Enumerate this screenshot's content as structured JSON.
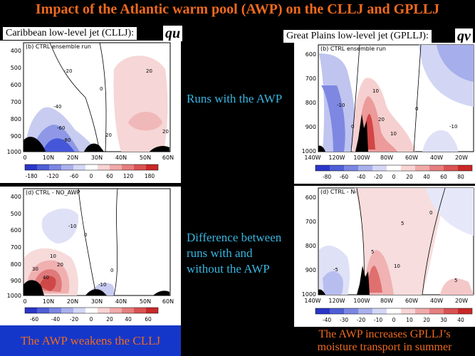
{
  "title": "Impact of the Atlantic warm pool (AWP) on the CLLJ and GPLLJ",
  "left_header": "Caribbean low-level jet (CLLJ):",
  "left_symbol": "qu",
  "right_header": "Great Plains low-level jet (GPLLJ):",
  "right_symbol": "qv",
  "middle_text_top": "Runs with the AWP",
  "middle_text_bottom": [
    "Difference between",
    "runs with and",
    "without the AWP"
  ],
  "bottom_left_caption": "The AWP weakens the CLLJ",
  "bottom_right_caption": [
    "The AWP increases GPLLJ’s",
    "moisture transport in summer"
  ],
  "colors": {
    "title": "#f06a1e",
    "caption_left_bg": "#1537c9",
    "caption_right_text": "#f06a1e",
    "middle_text": "#38b6e0"
  },
  "panels": {
    "left_top": {
      "panel_title": "(b) CTRL ensemble run",
      "y_ticks": [
        "400",
        "500",
        "600",
        "700",
        "800",
        "900",
        "1000"
      ],
      "x_ticks": [
        "0",
        "10N",
        "20N",
        "30N",
        "40N",
        "50N",
        "60N"
      ],
      "contour_labels": [
        "-20",
        "-40",
        "-60",
        "-80",
        "0",
        "20",
        "20",
        "20"
      ],
      "colorbar": [
        "-180",
        "-120",
        "-60",
        "0",
        "60",
        "120",
        "180"
      ]
    },
    "left_bottom": {
      "panel_title": "(d) CTRL - NO_AWP",
      "y_ticks": [
        "400",
        "500",
        "600",
        "700",
        "800",
        "900",
        "1000"
      ],
      "x_ticks": [
        "0",
        "10N",
        "20N",
        "30N",
        "40N",
        "50N",
        "60N"
      ],
      "contour_labels": [
        "10",
        "20",
        "30",
        "40",
        "-10",
        "0",
        "0",
        "-10"
      ],
      "colorbar": [
        "-60",
        "-40",
        "-20",
        "0",
        "20",
        "40",
        "60"
      ]
    },
    "right_top": {
      "panel_title": "(b) CTRL ensemble run",
      "y_ticks": [
        "600",
        "700",
        "800",
        "900",
        "1000"
      ],
      "x_ticks": [
        "140W",
        "120W",
        "100W",
        "80W",
        "60W",
        "40W",
        "20W"
      ],
      "contour_labels": [
        "-10",
        "0",
        "10",
        "20",
        "10",
        "0",
        "-10"
      ],
      "colorbar": [
        "-80",
        "-60",
        "-40",
        "-20",
        "0",
        "20",
        "40",
        "60",
        "80"
      ]
    },
    "right_bottom": {
      "panel_title": "(d) CTRL - NO_AWP",
      "y_ticks": [
        "600",
        "700",
        "800",
        "900",
        "1000"
      ],
      "x_ticks": [
        "140W",
        "120W",
        "100W",
        "80W",
        "60W",
        "40W",
        "20W"
      ],
      "contour_labels": [
        "5",
        "5",
        "10",
        "0",
        "-5",
        "5"
      ],
      "colorbar": [
        "-40",
        "-30",
        "-20",
        "-10",
        "0",
        "10",
        "20",
        "30",
        "40"
      ]
    }
  }
}
